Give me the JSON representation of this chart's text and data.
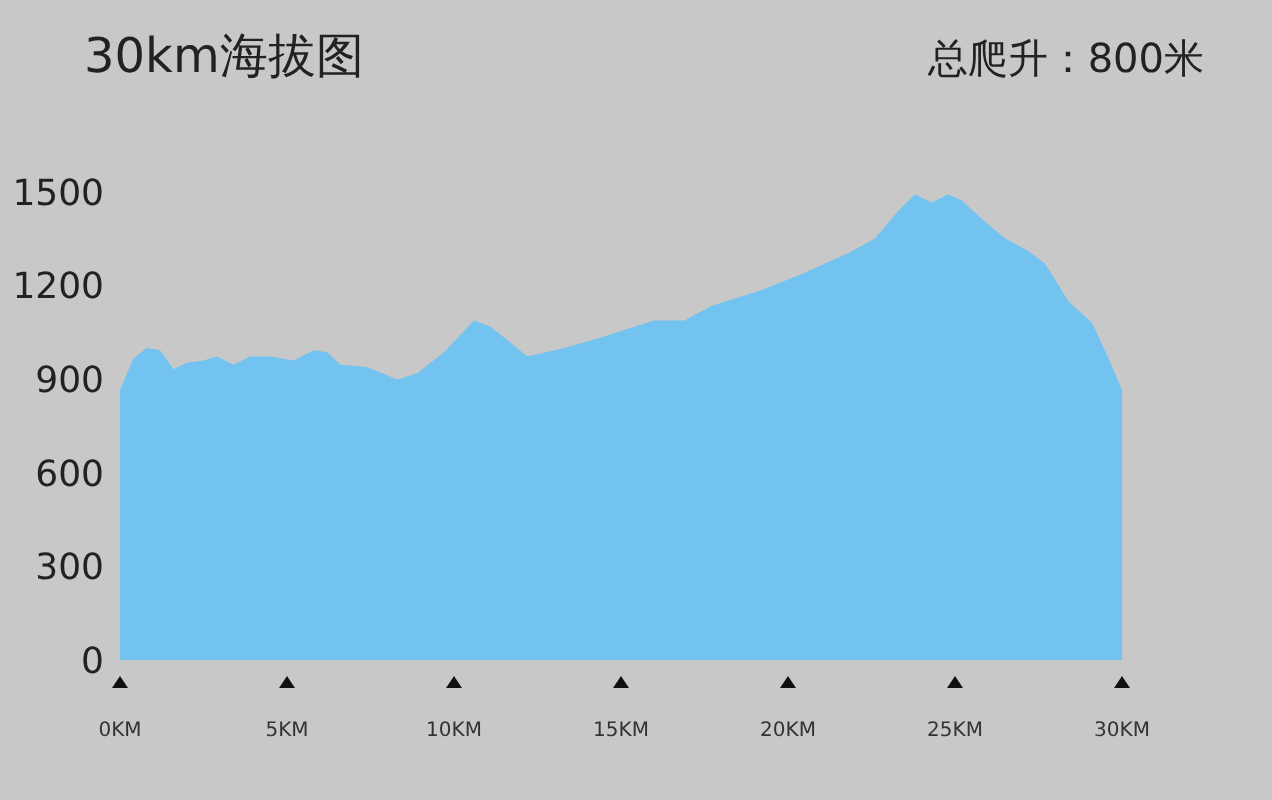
{
  "chart_data": {
    "type": "area",
    "title": "30km海拔图",
    "annotations": [
      "总爬升：800米"
    ],
    "x": [
      0,
      0.4,
      0.8,
      1.2,
      1.6,
      2.0,
      2.5,
      2.9,
      3.4,
      3.9,
      4.5,
      5.2,
      5.8,
      6.2,
      6.6,
      7.4,
      8.3,
      8.9,
      9.7,
      10.6,
      11.1,
      12.2,
      13.3,
      14.4,
      15.4,
      16.0,
      16.9,
      17.7,
      19.1,
      20.4,
      21.8,
      22.6,
      23.3,
      23.8,
      24.3,
      24.8,
      25.2,
      25.9,
      26.5,
      27.2,
      27.7,
      28.4,
      29.1,
      29.6,
      30
    ],
    "series": [
      {
        "color": "#72c3ef",
        "values": [
          865,
          966,
          1000,
          993,
          932,
          953,
          960,
          973,
          946,
          973,
          973,
          960,
          993,
          986,
          946,
          939,
          899,
          919,
          986,
          1088,
          1068,
          973,
          1000,
          1034,
          1068,
          1088,
          1088,
          1135,
          1182,
          1236,
          1304,
          1351,
          1439,
          1493,
          1466,
          1493,
          1473,
          1405,
          1351,
          1311,
          1270,
          1149,
          1081,
          966,
          865
        ]
      }
    ],
    "xlim": [
      0,
      30
    ],
    "xticks": [
      {
        "value": 0,
        "label": "0KM"
      },
      {
        "value": 5,
        "label": "5KM"
      },
      {
        "value": 10,
        "label": "10KM"
      },
      {
        "value": 15,
        "label": "15KM"
      },
      {
        "value": 20,
        "label": "20KM"
      },
      {
        "value": 25,
        "label": "25KM"
      },
      {
        "value": 30,
        "label": "30KM"
      }
    ],
    "ylim": [
      0,
      1500
    ],
    "yticks": [
      0,
      300,
      600,
      900,
      1200,
      1500
    ],
    "grid": false,
    "legend": false
  }
}
